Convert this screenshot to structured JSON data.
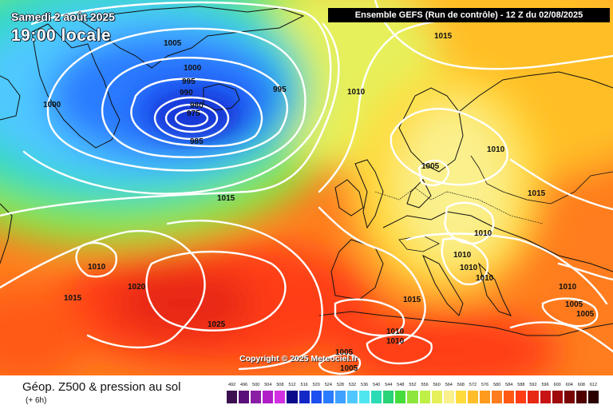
{
  "header": {
    "date": "Samedi 2 août 2025",
    "time": "19:00 locale",
    "title": "Ensemble GEFS  (Run de contrôle)  -  12 Z du 02/08/2025"
  },
  "copyright": "Copyright © 2025 Meteociel.fr",
  "footer": {
    "title": "Géop. Z500 & pression au sol",
    "subtitle": "(+ 6h)"
  },
  "colorbar": {
    "labels": [
      "492",
      "496",
      "500",
      "504",
      "508",
      "512",
      "516",
      "520",
      "524",
      "528",
      "532",
      "536",
      "540",
      "544",
      "548",
      "552",
      "556",
      "560",
      "564",
      "568",
      "572",
      "576",
      "580",
      "584",
      "588",
      "592",
      "596",
      "600",
      "604",
      "608",
      "612"
    ],
    "colors": [
      "#3c1050",
      "#5a0f78",
      "#8a1fa6",
      "#b01ec8",
      "#d230e2",
      "#0a0a8a",
      "#1428c8",
      "#1e50f0",
      "#2a7cff",
      "#3ea0ff",
      "#50c8ff",
      "#50e6f0",
      "#2adcb4",
      "#2ad278",
      "#46dc3c",
      "#8ce63c",
      "#bef046",
      "#e6f05a",
      "#faf08c",
      "#ffdc3c",
      "#ffbe28",
      "#ff9b1e",
      "#ff7d1e",
      "#ff5a14",
      "#ff3c14",
      "#e62814",
      "#c81414",
      "#a00a0a",
      "#7a0505",
      "#500000",
      "#2a0000"
    ]
  },
  "pressure_labels": [
    {
      "text": "1005"
    },
    {
      "text": "1000"
    },
    {
      "text": "995"
    },
    {
      "text": "990"
    },
    {
      "text": "980"
    },
    {
      "text": "975"
    },
    {
      "text": "985"
    },
    {
      "text": "995"
    },
    {
      "text": "1000"
    },
    {
      "text": "1015"
    },
    {
      "text": "1010"
    },
    {
      "text": "1015"
    },
    {
      "text": "1010"
    },
    {
      "text": "1020"
    },
    {
      "text": "1015"
    },
    {
      "text": "1025"
    },
    {
      "text": "1005"
    },
    {
      "text": "1010"
    },
    {
      "text": "1015"
    },
    {
      "text": "1010"
    },
    {
      "text": "1010"
    },
    {
      "text": "1010"
    },
    {
      "text": "1010"
    },
    {
      "text": "1015"
    },
    {
      "text": "1010"
    },
    {
      "text": "1010"
    },
    {
      "text": "1010"
    },
    {
      "text": "1005"
    },
    {
      "text": "1005"
    },
    {
      "text": "1005"
    },
    {
      "text": "1005"
    }
  ],
  "icons": {
    "land": "coastline-lines",
    "isobars": "white-contour-lines"
  }
}
